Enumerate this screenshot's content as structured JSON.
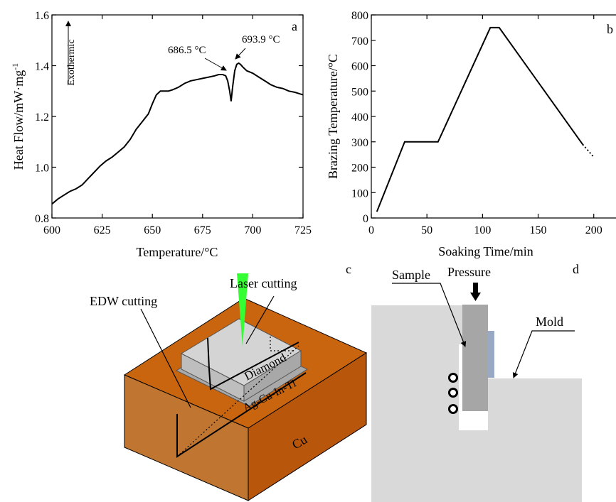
{
  "chart_data": [
    {
      "panel": "a",
      "type": "line",
      "xlabel": "Temperature/°C",
      "ylabel": "Heat Flow/mW·mg",
      "ylabel_sup": "-1",
      "xlim": [
        600,
        725
      ],
      "ylim": [
        0.8,
        1.6
      ],
      "xticks": [
        600,
        625,
        650,
        675,
        700,
        725
      ],
      "yticks": [
        0.8,
        1.0,
        1.2,
        1.4,
        1.6
      ],
      "exo_label": "Exothermic",
      "annotations": [
        "686.5 °C",
        "693.9 °C"
      ],
      "series": [
        {
          "x": [
            600,
            603,
            606,
            609,
            612,
            615,
            618,
            621,
            624,
            627,
            630,
            633,
            636,
            639,
            642,
            645,
            648,
            650,
            652,
            654,
            656,
            658,
            660,
            663,
            666,
            669,
            672,
            675,
            678,
            681,
            683,
            685,
            686.5,
            687.5,
            688.5,
            689.2,
            690,
            691,
            692,
            693,
            693.9,
            695,
            697,
            700,
            703,
            706,
            709,
            712,
            715,
            718,
            721,
            723,
            725
          ],
          "y": [
            0.855,
            0.875,
            0.89,
            0.905,
            0.915,
            0.93,
            0.955,
            0.98,
            1.005,
            1.025,
            1.04,
            1.06,
            1.08,
            1.11,
            1.15,
            1.18,
            1.21,
            1.25,
            1.285,
            1.3,
            1.3,
            1.3,
            1.305,
            1.315,
            1.33,
            1.34,
            1.345,
            1.35,
            1.355,
            1.36,
            1.365,
            1.365,
            1.36,
            1.34,
            1.3,
            1.26,
            1.32,
            1.38,
            1.405,
            1.41,
            1.405,
            1.395,
            1.38,
            1.37,
            1.355,
            1.34,
            1.325,
            1.315,
            1.31,
            1.3,
            1.295,
            1.29,
            1.285
          ]
        }
      ]
    },
    {
      "panel": "b",
      "type": "line",
      "xlabel": "Soaking Time/min",
      "ylabel": "Brazing Temperature/°C",
      "xlim": [
        0,
        220
      ],
      "ylim": [
        0,
        800
      ],
      "xticks": [
        0,
        50,
        100,
        150,
        200
      ],
      "yticks": [
        0,
        100,
        200,
        300,
        400,
        500,
        600,
        700,
        800
      ],
      "series": [
        {
          "style": "solid",
          "x": [
            5,
            30,
            60,
            107,
            115,
            190
          ],
          "y": [
            25,
            300,
            300,
            750,
            750,
            290
          ]
        },
        {
          "style": "dotted",
          "x": [
            190,
            200
          ],
          "y": [
            290,
            240
          ]
        }
      ]
    }
  ],
  "panels": {
    "a": "a",
    "b": "b",
    "c": "c",
    "d": "d"
  },
  "schematic_c": {
    "laser_label": "Laser cutting",
    "edw_label": "EDW cutting",
    "diamond_label": "Diamond",
    "filler_label": "Ag-Cu-In-Ti",
    "substrate_label": "Cu",
    "colors": {
      "copper": "#c8650e",
      "diamond": "#bdbdbd",
      "laser": "#33ff33"
    }
  },
  "schematic_d": {
    "sample_label": "Sample",
    "pressure_label": "Pressure",
    "mold_label": "Mold",
    "colors": {
      "mold": "#d9d9d9",
      "sample": "#a6a6a6",
      "shim": "#99a9c4"
    }
  }
}
